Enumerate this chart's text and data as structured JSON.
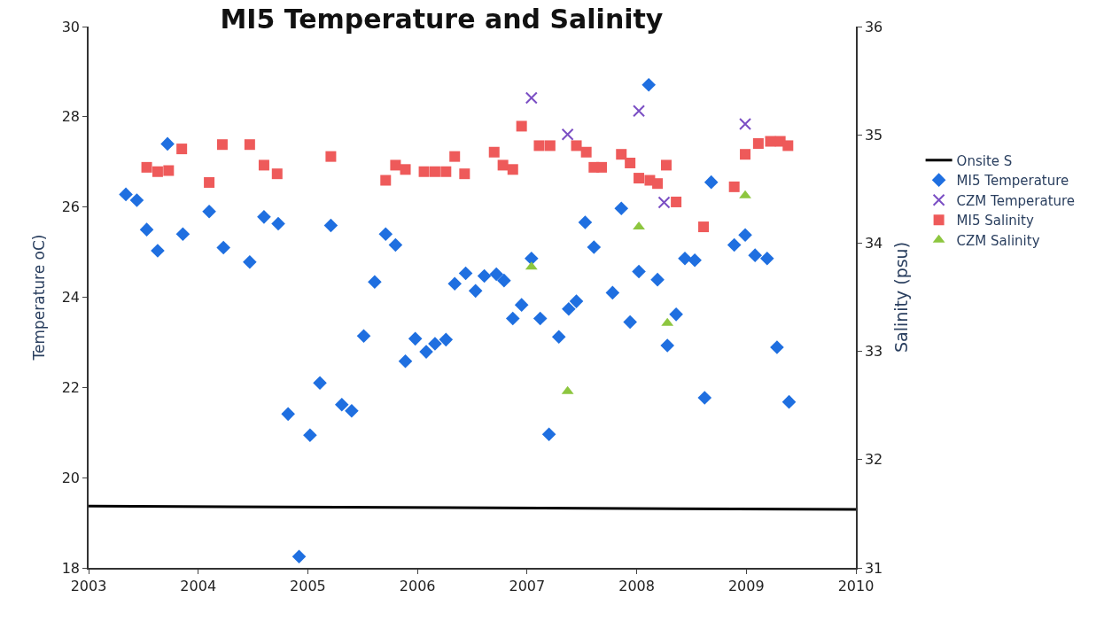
{
  "chart_data": {
    "type": "scatter",
    "title": "MI5 Temperature and Salinity",
    "xlabel": null,
    "ylabel": "Temperature oC)",
    "y2label": "Salinity (psu)",
    "xlim": [
      2003,
      2010
    ],
    "xticks": [
      2003,
      2004,
      2005,
      2006,
      2007,
      2008,
      2009,
      2010
    ],
    "ylim": [
      18,
      30
    ],
    "yticks": [
      18,
      20,
      22,
      24,
      26,
      28,
      30
    ],
    "y2lim": [
      31,
      36
    ],
    "y2ticks": [
      31,
      32,
      33,
      34,
      35,
      36
    ],
    "legend": "right",
    "series": [
      {
        "name": "Onsite S",
        "type": "line",
        "axis": "y2",
        "marker": "none",
        "line_style": "solid",
        "color": "#000000",
        "x": [
          2003,
          2010
        ],
        "values": [
          31.57,
          31.54
        ]
      },
      {
        "name": "MI5 Temperature",
        "marker": "diamond",
        "color": "#1f6fe0",
        "x": [
          2003.34,
          2003.44,
          2003.53,
          2003.63,
          2003.72,
          2003.86,
          2004.1,
          2004.23,
          2004.47,
          2004.6,
          2004.73,
          2004.82,
          2004.92,
          2005.02,
          2005.11,
          2005.21,
          2005.31,
          2005.4,
          2005.51,
          2005.61,
          2005.71,
          2005.8,
          2005.89,
          2005.98,
          2006.08,
          2006.16,
          2006.26,
          2006.34,
          2006.44,
          2006.53,
          2006.61,
          2006.72,
          2006.79,
          2006.87,
          2006.95,
          2007.04,
          2007.12,
          2007.2,
          2007.29,
          2007.38,
          2007.45,
          2007.53,
          2007.61,
          2007.78,
          2007.86,
          2007.94,
          2008.02,
          2008.11,
          2008.19,
          2008.28,
          2008.36,
          2008.44,
          2008.53,
          2008.62,
          2008.68,
          2008.89,
          2008.99,
          2009.08,
          2009.19,
          2009.28,
          2009.39
        ],
        "values": [
          26.28,
          26.15,
          25.5,
          25.03,
          27.4,
          25.4,
          25.9,
          25.1,
          24.78,
          25.78,
          25.63,
          21.41,
          18.25,
          20.94,
          22.1,
          25.59,
          21.62,
          21.48,
          23.14,
          24.34,
          25.4,
          25.16,
          22.58,
          23.08,
          22.79,
          22.97,
          23.06,
          24.3,
          24.53,
          24.14,
          24.47,
          24.51,
          24.37,
          23.53,
          23.83,
          24.86,
          23.53,
          20.96,
          23.12,
          23.74,
          23.91,
          25.66,
          25.11,
          24.1,
          25.97,
          23.45,
          24.57,
          28.71,
          24.39,
          22.93,
          23.62,
          24.86,
          24.82,
          21.77,
          26.55,
          25.16,
          25.38,
          24.93,
          24.86,
          22.89,
          21.68
        ]
      },
      {
        "name": "CZM Temperature",
        "marker": "cross",
        "color": "#7b4fc4",
        "x": [
          2007.04,
          2007.37,
          2008.02,
          2008.25,
          2008.99
        ],
        "values": [
          28.42,
          27.61,
          28.13,
          26.1,
          27.84
        ]
      },
      {
        "name": "MI5 Salinity",
        "axis": "y2",
        "marker": "square",
        "color": "#ee5a5a",
        "x": [
          2003.53,
          2003.63,
          2003.73,
          2003.85,
          2004.1,
          2004.22,
          2004.47,
          2004.6,
          2004.72,
          2005.21,
          2005.71,
          2005.8,
          2005.89,
          2006.06,
          2006.16,
          2006.26,
          2006.34,
          2006.43,
          2006.7,
          2006.78,
          2006.87,
          2006.95,
          2007.11,
          2007.21,
          2007.45,
          2007.54,
          2007.61,
          2007.68,
          2007.86,
          2007.94,
          2008.02,
          2008.12,
          2008.19,
          2008.27,
          2008.36,
          2008.61,
          2008.89,
          2008.99,
          2009.11,
          2009.22,
          2009.31,
          2009.38
        ],
        "values": [
          34.7,
          34.66,
          34.67,
          34.87,
          34.56,
          34.91,
          34.91,
          34.72,
          34.64,
          34.8,
          34.58,
          34.72,
          34.68,
          34.66,
          34.66,
          34.66,
          34.8,
          34.64,
          34.84,
          34.72,
          34.68,
          35.08,
          34.9,
          34.9,
          34.9,
          34.84,
          34.7,
          34.7,
          34.82,
          34.74,
          34.6,
          34.58,
          34.55,
          34.72,
          34.38,
          34.15,
          34.52,
          34.82,
          34.92,
          34.94,
          34.94,
          34.9
        ]
      },
      {
        "name": "CZM Salinity",
        "axis": "y2",
        "marker": "triangle",
        "color": "#8dc63f",
        "x": [
          2007.04,
          2007.37,
          2008.02,
          2008.28,
          2008.99
        ],
        "values": [
          33.78,
          32.63,
          34.15,
          33.26,
          34.44
        ]
      }
    ]
  }
}
